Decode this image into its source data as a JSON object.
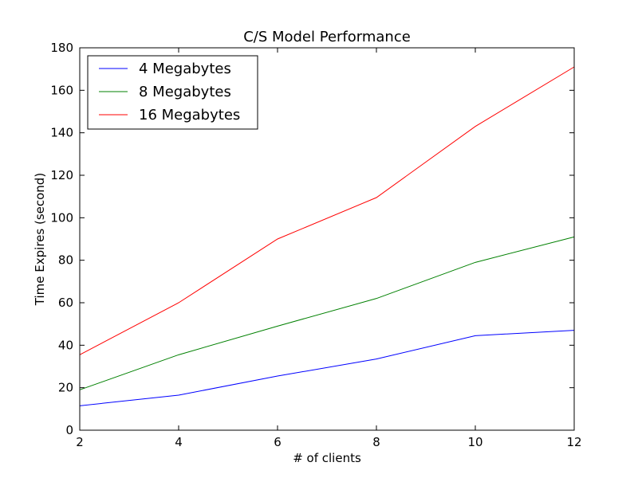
{
  "chart_data": {
    "type": "line",
    "title": "C/S Model Performance",
    "xlabel": "# of clients",
    "ylabel": "Time Expires (second)",
    "xlim": [
      2,
      12
    ],
    "ylim": [
      0,
      180
    ],
    "xticks": [
      2,
      4,
      6,
      8,
      10,
      12
    ],
    "yticks": [
      0,
      20,
      40,
      60,
      80,
      100,
      120,
      140,
      160,
      180
    ],
    "x": [
      2,
      4,
      6,
      8,
      10,
      12
    ],
    "grid": false,
    "legend_position": "top-left",
    "series": [
      {
        "name": "4 Megabytes",
        "color": "#0000ff",
        "values": [
          11.5,
          16.5,
          25.5,
          33.5,
          44.5,
          47
        ]
      },
      {
        "name": "8 Megabytes",
        "color": "#008000",
        "values": [
          19,
          35.5,
          49,
          62,
          79,
          91
        ]
      },
      {
        "name": "16 Megabytes",
        "color": "#ff0000",
        "values": [
          35.5,
          60,
          90,
          109.5,
          143,
          171
        ]
      }
    ]
  }
}
